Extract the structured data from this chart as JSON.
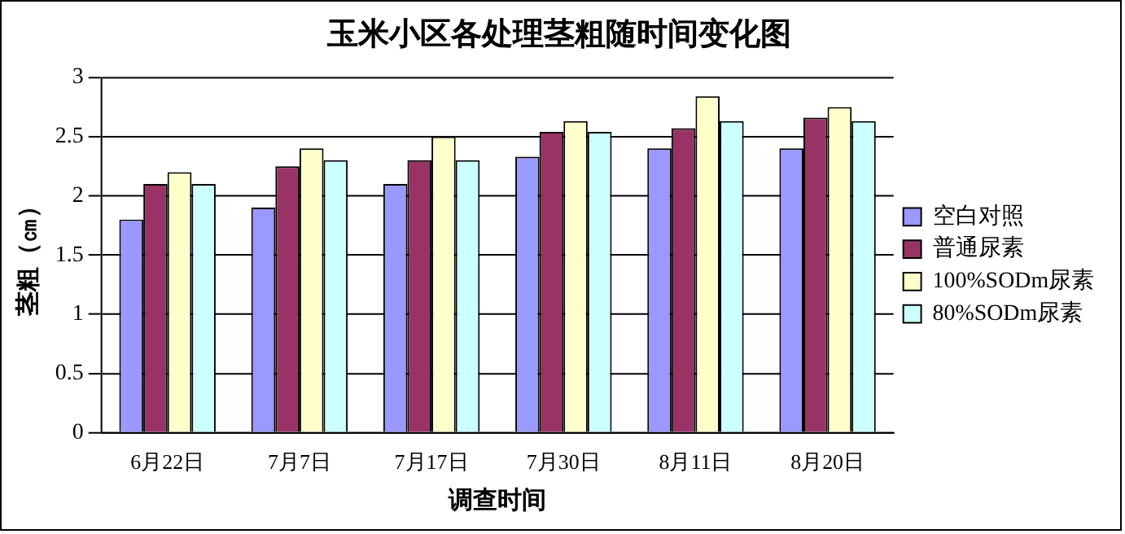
{
  "chart_data": {
    "type": "bar",
    "title": "玉米小区各处理茎粗随时间变化图",
    "xlabel": "调查时间",
    "ylabel": "茎粗（㎝）",
    "categories": [
      "6月22日",
      "7月7日",
      "7月17日",
      "7月30日",
      "8月11日",
      "8月20日"
    ],
    "series": [
      {
        "name": "空白对照",
        "color": "#9999ff",
        "values": [
          1.8,
          1.9,
          2.1,
          2.33,
          2.4,
          2.4
        ]
      },
      {
        "name": "普通尿素",
        "color": "#993366",
        "values": [
          2.1,
          2.25,
          2.3,
          2.54,
          2.57,
          2.66
        ]
      },
      {
        "name": "100%SODm尿素",
        "color": "#ffffcc",
        "values": [
          2.2,
          2.4,
          2.5,
          2.63,
          2.84,
          2.75
        ]
      },
      {
        "name": "80%SODm尿素",
        "color": "#ccffff",
        "values": [
          2.1,
          2.3,
          2.3,
          2.54,
          2.63,
          2.63
        ]
      }
    ],
    "ylim": [
      0,
      3
    ],
    "yticks": [
      0,
      0.5,
      1,
      1.5,
      2,
      2.5,
      3
    ],
    "grid": "y",
    "legend": "right"
  }
}
